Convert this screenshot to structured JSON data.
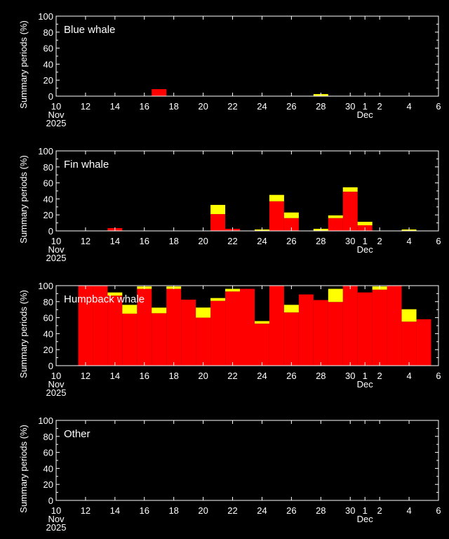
{
  "chart_data": [
    {
      "type": "bar",
      "stacked": true,
      "title": "Blue whale",
      "xlabel": "",
      "ylabel": "Summary periods (%)",
      "ylim": [
        0,
        100
      ],
      "yticks": [
        0,
        20,
        40,
        60,
        80,
        100
      ],
      "xlim": [
        10,
        36
      ],
      "series": [
        {
          "name": "red",
          "color": "#ff0000",
          "points": [
            [
              17,
              8.8
            ]
          ]
        },
        {
          "name": "yellow",
          "color": "#ffff00",
          "points": [
            [
              28,
              2.6
            ]
          ]
        }
      ]
    },
    {
      "type": "bar",
      "stacked": true,
      "title": "Fin whale",
      "xlabel": "",
      "ylabel": "Summary periods (%)",
      "ylim": [
        0,
        100
      ],
      "yticks": [
        0,
        20,
        40,
        60,
        80,
        100
      ],
      "xlim": [
        10,
        36
      ],
      "series": [
        {
          "name": "red",
          "color": "#ff0000",
          "points": [
            [
              14,
              3.5
            ],
            [
              21,
              21
            ],
            [
              22,
              2.6
            ],
            [
              25,
              37
            ],
            [
              26,
              16
            ],
            [
              29,
              16
            ],
            [
              30,
              49
            ],
            [
              31,
              7
            ]
          ]
        },
        {
          "name": "yellow",
          "color": "#ffff00",
          "points": [
            [
              21,
              11.5
            ],
            [
              24,
              1.8
            ],
            [
              25,
              8
            ],
            [
              26,
              7
            ],
            [
              28,
              2.6
            ],
            [
              29,
              3.4
            ],
            [
              30,
              5.5
            ],
            [
              31,
              4.4
            ],
            [
              34,
              1.8
            ]
          ]
        }
      ]
    },
    {
      "type": "bar",
      "stacked": true,
      "title": "Humpback whale",
      "xlabel": "",
      "ylabel": "Summary periods (%)",
      "ylim": [
        0,
        100
      ],
      "yticks": [
        0,
        20,
        40,
        60,
        80,
        100
      ],
      "xlim": [
        10,
        36
      ],
      "series": [
        {
          "name": "red",
          "color": "#ff0000",
          "points": [
            [
              12,
              100
            ],
            [
              13,
              100
            ],
            [
              14,
              87.5
            ],
            [
              15,
              65
            ],
            [
              16,
              96
            ],
            [
              17,
              65.5
            ],
            [
              18,
              96
            ],
            [
              19,
              82.5
            ],
            [
              20,
              60
            ],
            [
              21,
              81
            ],
            [
              22,
              92.7
            ],
            [
              23,
              96
            ],
            [
              24,
              52.5
            ],
            [
              25,
              100
            ],
            [
              26,
              66.5
            ],
            [
              27,
              89
            ],
            [
              28,
              82
            ],
            [
              29,
              79.6
            ],
            [
              30,
              100
            ],
            [
              31,
              91.5
            ],
            [
              32,
              95
            ],
            [
              33,
              100
            ],
            [
              34,
              55
            ],
            [
              35,
              58
            ]
          ]
        },
        {
          "name": "yellow",
          "color": "#ffff00",
          "points": [
            [
              14,
              4
            ],
            [
              15,
              11
            ],
            [
              16,
              3
            ],
            [
              17,
              7
            ],
            [
              18,
              3
            ],
            [
              20,
              12.6
            ],
            [
              21,
              3.5
            ],
            [
              22,
              3.3
            ],
            [
              24,
              3.2
            ],
            [
              26,
              9.5
            ],
            [
              29,
              16.4
            ],
            [
              32,
              4
            ],
            [
              34,
              15.5
            ]
          ]
        }
      ]
    },
    {
      "type": "bar",
      "stacked": true,
      "title": "Other",
      "xlabel": "",
      "ylabel": "Summary periods (%)",
      "ylim": [
        0,
        100
      ],
      "yticks": [
        0,
        20,
        40,
        60,
        80,
        100
      ],
      "xlim": [
        10,
        36
      ],
      "series": [
        {
          "name": "red",
          "color": "#ff0000",
          "points": []
        },
        {
          "name": "yellow",
          "color": "#ffff00",
          "points": []
        }
      ]
    }
  ],
  "x_axis": {
    "ticks": [
      {
        "day": 10,
        "label": "10"
      },
      {
        "day": 12,
        "label": "12"
      },
      {
        "day": 14,
        "label": "14"
      },
      {
        "day": 16,
        "label": "16"
      },
      {
        "day": 18,
        "label": "18"
      },
      {
        "day": 20,
        "label": "20"
      },
      {
        "day": 22,
        "label": "22"
      },
      {
        "day": 24,
        "label": "24"
      },
      {
        "day": 26,
        "label": "26"
      },
      {
        "day": 28,
        "label": "28"
      },
      {
        "day": 30,
        "label": "30"
      },
      {
        "day": 31,
        "label": "1"
      },
      {
        "day": 32,
        "label": "2"
      },
      {
        "day": 34,
        "label": "4"
      },
      {
        "day": 36,
        "label": "6"
      }
    ],
    "month1": "Nov",
    "year": "2025",
    "month2": "Dec"
  }
}
